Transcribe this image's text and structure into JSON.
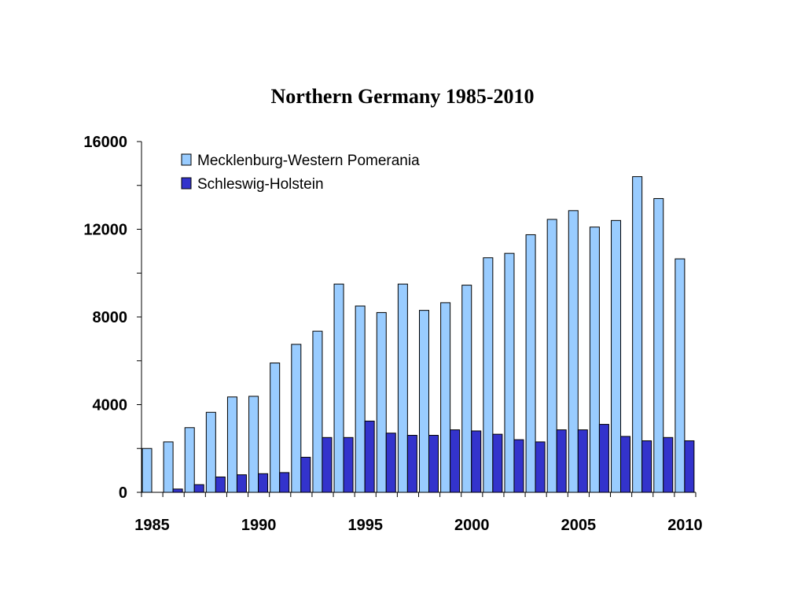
{
  "chart_data": {
    "type": "bar",
    "title": "Northern Germany 1985-2010",
    "xlabel": "",
    "ylabel": "",
    "ylim": [
      0,
      16000
    ],
    "y_ticks": [
      0,
      4000,
      8000,
      12000,
      16000
    ],
    "y_tick_labels": [
      "0",
      "4000",
      "8000",
      "12000",
      "16000"
    ],
    "categories": [
      1985,
      1986,
      1987,
      1988,
      1989,
      1990,
      1991,
      1992,
      1993,
      1994,
      1995,
      1996,
      1997,
      1998,
      1999,
      2000,
      2001,
      2002,
      2003,
      2004,
      2005,
      2006,
      2007,
      2008,
      2009,
      2010
    ],
    "x_tick_labels": [
      "1985",
      "1990",
      "1995",
      "2000",
      "2005",
      "2010"
    ],
    "grid": false,
    "legend_position": "top-left",
    "series": [
      {
        "name": "Mecklenburg-Western Pomerania",
        "color": "#99ccff",
        "values": [
          2000,
          2300,
          2950,
          3650,
          4350,
          4380,
          5900,
          6750,
          7350,
          9500,
          8500,
          8200,
          9500,
          8300,
          8650,
          9450,
          10700,
          10900,
          11750,
          12450,
          12850,
          12100,
          12400,
          14400,
          13400,
          10650
        ]
      },
      {
        "name": "Schleswig-Holstein",
        "color": "#3333cc",
        "values": [
          0,
          150,
          350,
          700,
          800,
          850,
          900,
          1600,
          2500,
          2500,
          3250,
          2700,
          2600,
          2600,
          2850,
          2800,
          2650,
          2400,
          2300,
          2850,
          2850,
          3100,
          2550,
          2350,
          2500,
          2350
        ]
      }
    ]
  }
}
